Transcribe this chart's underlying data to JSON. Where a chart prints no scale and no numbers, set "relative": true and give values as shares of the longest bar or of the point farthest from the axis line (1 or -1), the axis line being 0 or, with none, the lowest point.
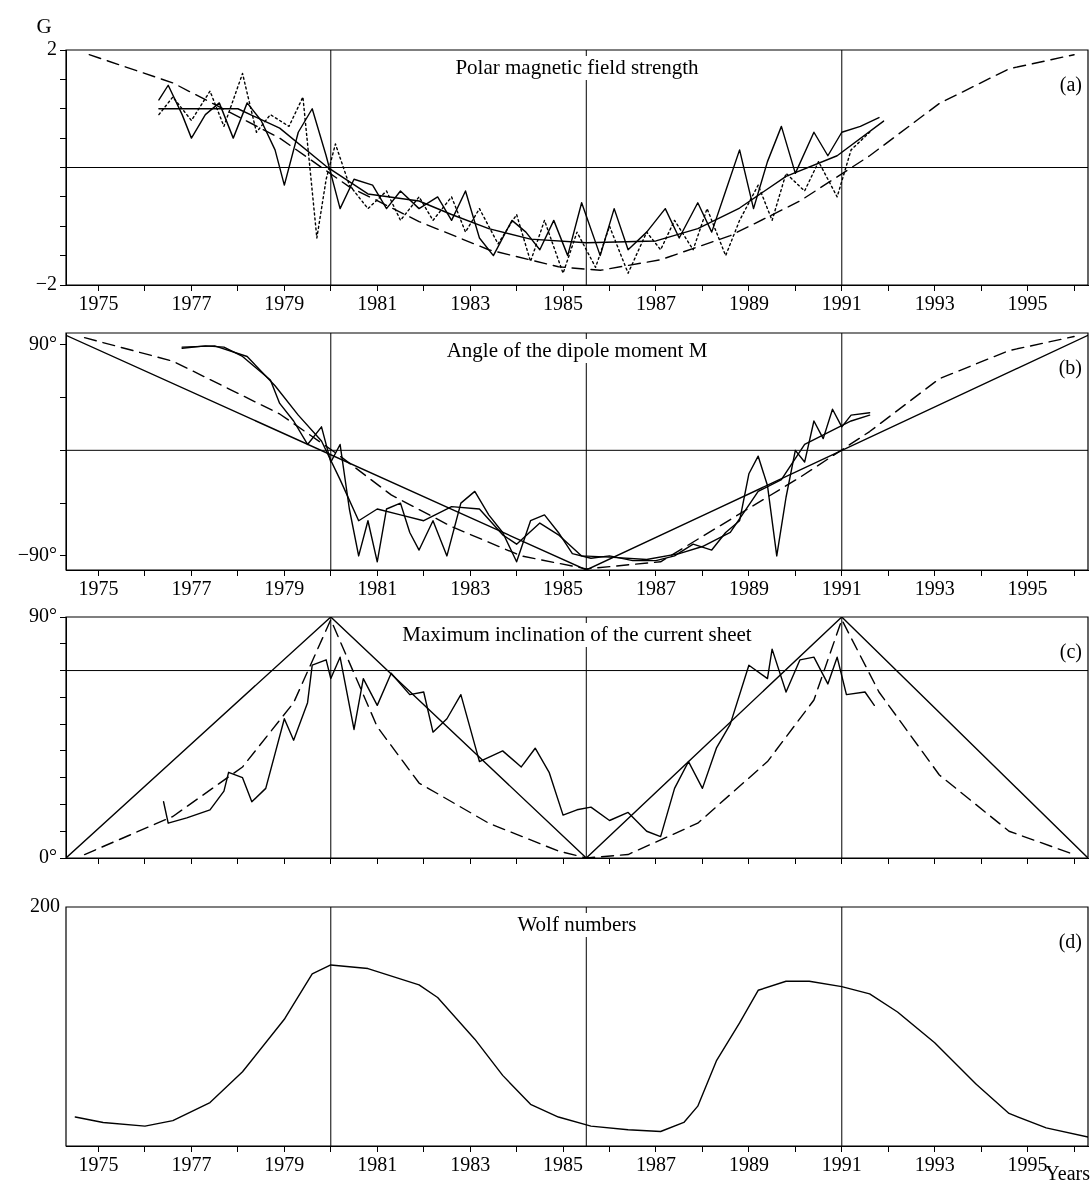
{
  "chart_data": [
    {
      "type": "line",
      "title": "Polar magnetic field strength",
      "ylabel": "G",
      "annotations": [
        "(a)"
      ],
      "xlim": [
        1974.3,
        1996.3
      ],
      "xticks": [
        1975,
        {
          "value": 1976,
          "label": null
        },
        1977,
        {
          "value": 1978,
          "label": null
        },
        1979,
        {
          "value": 1980,
          "label": null
        },
        1981,
        {
          "value": 1982,
          "label": null
        },
        1983,
        {
          "value": 1984,
          "label": null
        },
        1985,
        {
          "value": 1986,
          "label": null
        },
        1987,
        {
          "value": 1988,
          "label": null
        },
        1989,
        {
          "value": 1990,
          "label": null
        },
        1991,
        {
          "value": 1992,
          "label": null
        },
        1993,
        {
          "value": 1994,
          "label": null
        },
        1995,
        {
          "value": 1996,
          "label": null
        }
      ],
      "ylim": [
        -2,
        2
      ],
      "yticks": [
        {
          "value": -2,
          "label": "−2"
        },
        {
          "value": -1.5,
          "label": null
        },
        {
          "value": -1,
          "label": null
        },
        {
          "value": -0.5,
          "label": null
        },
        {
          "value": 0,
          "label": null
        },
        {
          "value": 0.5,
          "label": null
        },
        {
          "value": 1,
          "label": null
        },
        {
          "value": 1.5,
          "label": null
        },
        2
      ],
      "ref_lines": [
        {
          "axis": "x",
          "value": 1980
        },
        {
          "axis": "x",
          "value": 1985.5
        },
        {
          "axis": "x",
          "value": 1991
        },
        {
          "axis": "y",
          "value": 0
        }
      ],
      "series": [
        {
          "color": "#000000",
          "line_style": "dashed",
          "x": [
            1974.8,
            1976.6,
            1978.9,
            1980.4,
            1981.9,
            1983.4,
            1984.9,
            1985.8,
            1987.1,
            1988.6,
            1990.1,
            1991.6,
            1993.1,
            1994.6,
            1996.0
          ],
          "values": [
            1.92,
            1.44,
            0.5,
            -0.33,
            -0.92,
            -1.4,
            -1.69,
            -1.75,
            -1.57,
            -1.16,
            -0.57,
            0.2,
            1.09,
            1.68,
            1.92
          ]
        },
        {
          "color": "#000000",
          "line_style": "solid",
          "x": [
            1976.3,
            1976.5,
            1976.8,
            1977.0,
            1977.3,
            1977.6,
            1977.9,
            1978.2,
            1978.5,
            1978.8,
            1979.0,
            1979.3,
            1979.6,
            1979.9,
            1980.2,
            1980.5,
            1980.9,
            1981.2,
            1981.5,
            1981.9,
            1982.3,
            1982.6,
            1982.9,
            1983.2,
            1983.5,
            1983.9,
            1984.2,
            1984.5,
            1984.8,
            1985.1,
            1985.4,
            1985.8,
            1986.1,
            1986.4,
            1986.8,
            1987.2,
            1987.5,
            1987.9,
            1988.2,
            1988.5,
            1988.8,
            1989.1,
            1989.4,
            1989.7,
            1990.0,
            1990.4,
            1990.7,
            1991.0,
            1991.4,
            1991.8
          ],
          "values": [
            1.15,
            1.4,
            0.9,
            0.5,
            0.9,
            1.1,
            0.5,
            1.1,
            0.8,
            0.3,
            -0.3,
            0.6,
            1.0,
            0.2,
            -0.7,
            -0.2,
            -0.3,
            -0.7,
            -0.4,
            -0.7,
            -0.5,
            -0.9,
            -0.4,
            -1.2,
            -1.5,
            -0.9,
            -1.1,
            -1.4,
            -0.9,
            -1.5,
            -0.6,
            -1.5,
            -0.7,
            -1.4,
            -1.1,
            -0.7,
            -1.2,
            -0.6,
            -1.1,
            -0.4,
            0.3,
            -0.7,
            0.1,
            0.7,
            -0.1,
            0.6,
            0.2,
            0.6,
            0.7,
            0.85
          ]
        },
        {
          "color": "#000000",
          "line_style": "dotted",
          "x": [
            1976.3,
            1976.6,
            1977.0,
            1977.4,
            1977.7,
            1978.1,
            1978.4,
            1978.7,
            1979.1,
            1979.4,
            1979.7,
            1979.9,
            1980.1,
            1980.4,
            1980.8,
            1981.2,
            1981.5,
            1981.9,
            1982.2,
            1982.6,
            1982.9,
            1983.2,
            1983.6,
            1984.0,
            1984.3,
            1984.6,
            1985.0,
            1985.3,
            1985.7,
            1986.0,
            1986.4,
            1986.8,
            1987.1,
            1987.4,
            1987.8,
            1988.1,
            1988.5,
            1988.8,
            1989.2,
            1989.5,
            1989.8,
            1990.2,
            1990.5,
            1990.9,
            1991.2,
            1991.6
          ],
          "values": [
            0.9,
            1.2,
            0.8,
            1.3,
            0.7,
            1.6,
            0.6,
            0.9,
            0.7,
            1.2,
            -1.2,
            -0.2,
            0.4,
            -0.3,
            -0.7,
            -0.4,
            -0.9,
            -0.5,
            -0.9,
            -0.5,
            -1.1,
            -0.7,
            -1.3,
            -0.8,
            -1.6,
            -0.9,
            -1.8,
            -1.1,
            -1.7,
            -1.0,
            -1.8,
            -1.1,
            -1.4,
            -0.9,
            -1.4,
            -0.7,
            -1.5,
            -0.9,
            -0.3,
            -0.9,
            -0.1,
            -0.4,
            0.1,
            -0.5,
            0.3,
            0.6
          ]
        },
        {
          "color": "#000000",
          "line_style": "solid",
          "x": [
            1976.3,
            1978.0,
            1978.9,
            1979.9,
            1980.8,
            1981.9,
            1982.6,
            1983.4,
            1984.3,
            1985.5,
            1987.0,
            1987.9,
            1988.8,
            1989.8,
            1990.9,
            1991.9
          ],
          "values": [
            1.0,
            1.0,
            0.67,
            0.02,
            -0.45,
            -0.57,
            -0.8,
            -1.04,
            -1.22,
            -1.28,
            -1.25,
            -1.04,
            -0.69,
            -0.15,
            0.2,
            0.79
          ]
        }
      ]
    },
    {
      "type": "line",
      "title": "Angle of the dipole moment M",
      "annotations": [
        "(b)"
      ],
      "xlim": [
        1974.3,
        1996.3
      ],
      "xticks": [
        1975,
        {
          "value": 1976,
          "label": null
        },
        1977,
        {
          "value": 1978,
          "label": null
        },
        1979,
        {
          "value": 1980,
          "label": null
        },
        1981,
        {
          "value": 1982,
          "label": null
        },
        1983,
        {
          "value": 1984,
          "label": null
        },
        1985,
        {
          "value": 1986,
          "label": null
        },
        1987,
        {
          "value": 1988,
          "label": null
        },
        1989,
        {
          "value": 1990,
          "label": null
        },
        1991,
        {
          "value": 1992,
          "label": null
        },
        1993,
        {
          "value": 1994,
          "label": null
        },
        1995,
        {
          "value": 1996,
          "label": null
        }
      ],
      "ylim": [
        -102,
        100
      ],
      "yticks": [
        {
          "value": -90,
          "label": "−90°"
        },
        {
          "value": -45,
          "label": null
        },
        {
          "value": 0,
          "label": null
        },
        {
          "value": 45,
          "label": null
        },
        {
          "value": 90,
          "label": "90°"
        }
      ],
      "ref_lines": [
        {
          "axis": "x",
          "value": 1980
        },
        {
          "axis": "x",
          "value": 1985.5
        },
        {
          "axis": "x",
          "value": 1991
        },
        {
          "axis": "y",
          "value": 0
        }
      ],
      "series": [
        {
          "color": "#000000",
          "line_style": "solid",
          "x": [
            1974.3,
            1985.5,
            1996.3
          ],
          "values": [
            98,
            -102,
            98
          ]
        },
        {
          "color": "#000000",
          "line_style": "dashed",
          "x": [
            1974.7,
            1976.6,
            1978.9,
            1980.1,
            1981.3,
            1982.6,
            1984.1,
            1985.5,
            1987.1,
            1988.6,
            1990.1,
            1991.6,
            1993.1,
            1994.6,
            1996.0
          ],
          "values": [
            96,
            76,
            31,
            -2,
            -38,
            -65,
            -90,
            -101,
            -95,
            -59,
            -23,
            16,
            61,
            85,
            97
          ]
        },
        {
          "color": "#000000",
          "line_style": "solid",
          "x": [
            1976.8,
            1977.3,
            1977.7,
            1978.1,
            1978.4,
            1978.7,
            1978.9,
            1979.2,
            1979.5,
            1979.8,
            1980.0,
            1980.2,
            1980.4,
            1980.6,
            1980.8,
            1981.0,
            1981.2,
            1981.5,
            1981.7,
            1981.9,
            1982.2,
            1982.5,
            1982.8,
            1983.1,
            1983.4,
            1983.7,
            1984.0,
            1984.3,
            1984.6,
            1984.9,
            1985.2,
            1985.6,
            1986.0,
            1986.5,
            1987.0,
            1987.4,
            1987.8,
            1988.2,
            1988.5,
            1988.8,
            1989.0,
            1989.2,
            1989.4,
            1989.6,
            1989.8,
            1990.0,
            1990.2,
            1990.4,
            1990.6,
            1990.8,
            1991.0,
            1991.2,
            1991.6
          ],
          "values": [
            87,
            89,
            88,
            80,
            70,
            60,
            40,
            25,
            5,
            20,
            -10,
            5,
            -50,
            -90,
            -60,
            -95,
            -50,
            -45,
            -70,
            -85,
            -60,
            -90,
            -45,
            -35,
            -55,
            -70,
            -95,
            -60,
            -55,
            -70,
            -88,
            -92,
            -90,
            -94,
            -94,
            -90,
            -80,
            -85,
            -70,
            -60,
            -20,
            -5,
            -30,
            -90,
            -40,
            0,
            -10,
            25,
            10,
            35,
            20,
            30,
            32
          ]
        },
        {
          "color": "#000000",
          "line_style": "solid",
          "x": [
            1976.8,
            1977.5,
            1978.2,
            1978.8,
            1979.3,
            1979.8,
            1980.2,
            1980.6,
            1981.0,
            1981.5,
            1982.0,
            1982.6,
            1983.2,
            1983.7,
            1984.0,
            1984.5,
            1984.9,
            1985.4,
            1986.0,
            1986.8,
            1987.5,
            1988.0,
            1988.6,
            1989.2,
            1989.7,
            1990.2,
            1990.7,
            1991.2,
            1991.6
          ],
          "values": [
            88,
            89,
            80,
            55,
            30,
            8,
            -25,
            -60,
            -50,
            -55,
            -60,
            -48,
            -50,
            -72,
            -80,
            -62,
            -72,
            -90,
            -91,
            -93,
            -88,
            -82,
            -70,
            -35,
            -25,
            5,
            15,
            25,
            30
          ]
        }
      ]
    },
    {
      "type": "line",
      "title": "Maximum inclination of the current sheet",
      "annotations": [
        "(c)"
      ],
      "tick_labels": "y",
      "xlim": [
        1974.3,
        1996.3
      ],
      "xticks": [
        1975,
        {
          "value": 1976,
          "label": null
        },
        1977,
        {
          "value": 1978,
          "label": null
        },
        1979,
        {
          "value": 1980,
          "label": null
        },
        1981,
        {
          "value": 1982,
          "label": null
        },
        1983,
        {
          "value": 1984,
          "label": null
        },
        1985,
        {
          "value": 1986,
          "label": null
        },
        1987,
        {
          "value": 1988,
          "label": null
        },
        1989,
        {
          "value": 1990,
          "label": null
        },
        1991,
        {
          "value": 1992,
          "label": null
        },
        1993,
        {
          "value": 1994,
          "label": null
        },
        1995,
        {
          "value": 1996,
          "label": null
        }
      ],
      "ylim": [
        0,
        90
      ],
      "yticks": [
        {
          "value": 0,
          "label": "0°"
        },
        {
          "value": 10,
          "label": null
        },
        {
          "value": 20,
          "label": null
        },
        {
          "value": 30,
          "label": null
        },
        {
          "value": 40,
          "label": null
        },
        {
          "value": 50,
          "label": null
        },
        {
          "value": 60,
          "label": null
        },
        {
          "value": 70,
          "label": null
        },
        {
          "value": 80,
          "label": null
        },
        {
          "value": 90,
          "label": "90°"
        }
      ],
      "ref_lines": [
        {
          "axis": "x",
          "value": 1980
        },
        {
          "axis": "x",
          "value": 1985.5
        },
        {
          "axis": "x",
          "value": 1991
        },
        {
          "axis": "y",
          "value": 70
        }
      ],
      "series": [
        {
          "color": "#000000",
          "line_style": "solid",
          "x": [
            1974.3,
            1980,
            1985.5,
            1991,
            1996.3
          ],
          "values": [
            0,
            90,
            0,
            90,
            0
          ]
        },
        {
          "color": "#000000",
          "line_style": "dashed",
          "x": [
            1974.7,
            1976.6,
            1978.1,
            1979.2,
            1980.0,
            1981.0,
            1981.9,
            1983.4,
            1984.9,
            1985.5,
            1986.4,
            1987.9,
            1989.4,
            1990.4,
            1991.0,
            1991.8,
            1993.1,
            1994.6,
            1996.0
          ],
          "values": [
            1.3,
            15.5,
            34,
            58,
            89,
            49,
            28,
            13,
            2.6,
            0,
            1.3,
            13,
            36,
            59,
            89,
            62,
            31,
            10,
            1.3
          ]
        },
        {
          "color": "#000000",
          "line_style": "solid",
          "x": [
            1976.4,
            1976.5,
            1976.9,
            1977.4,
            1977.7,
            1977.8,
            1978.1,
            1978.3,
            1978.6,
            1978.8,
            1979.0,
            1979.2,
            1979.5,
            1979.6,
            1979.9,
            1980.0,
            1980.2,
            1980.5,
            1980.7,
            1981.0,
            1981.3,
            1981.7,
            1982.0,
            1982.2,
            1982.5,
            1982.8,
            1983.2,
            1983.7,
            1984.1,
            1984.4,
            1984.7,
            1985.0,
            1985.3,
            1985.6,
            1986.0,
            1986.4,
            1986.8,
            1987.1,
            1987.4,
            1987.7,
            1988.0,
            1988.3,
            1988.6,
            1989.0,
            1989.4,
            1989.5,
            1989.8,
            1990.1,
            1990.4,
            1990.7,
            1990.9,
            1991.1,
            1991.5,
            1991.7
          ],
          "values": [
            21,
            13,
            15,
            18,
            25,
            32,
            30,
            21,
            26,
            39,
            52,
            44,
            58,
            72,
            74,
            67,
            75,
            48,
            67,
            57,
            69,
            61,
            62,
            47,
            52,
            61,
            36,
            40,
            34,
            41,
            32,
            16,
            18,
            19,
            14,
            17,
            10,
            8,
            26,
            36,
            26,
            41,
            50,
            72,
            67,
            78,
            62,
            74,
            75,
            65,
            75,
            61,
            62,
            57
          ]
        }
      ]
    },
    {
      "type": "line",
      "title": "Wolf numbers",
      "xlabel": "Years",
      "annotations": [
        "(d)",
        "200"
      ],
      "relative": true,
      "xlim": [
        1974.3,
        1996.3
      ],
      "xticks": [
        1975,
        {
          "value": 1976,
          "label": null
        },
        1977,
        {
          "value": 1978,
          "label": null
        },
        1979,
        {
          "value": 1980,
          "label": null
        },
        1981,
        {
          "value": 1982,
          "label": null
        },
        1983,
        {
          "value": 1984,
          "label": null
        },
        1985,
        {
          "value": 1986,
          "label": null
        },
        1987,
        {
          "value": 1988,
          "label": null
        },
        1989,
        {
          "value": 1990,
          "label": null
        },
        1991,
        {
          "value": 1992,
          "label": null
        },
        1993,
        {
          "value": 1994,
          "label": null
        },
        1995,
        {
          "value": 1996,
          "label": null
        }
      ],
      "ref_lines": [
        {
          "axis": "x",
          "value": 1980
        },
        {
          "axis": "x",
          "value": 1985.5
        },
        {
          "axis": "x",
          "value": 1991
        }
      ],
      "series": [
        {
          "color": "#000000",
          "line_style": "solid",
          "x": [
            1974.5,
            1975.1,
            1976.0,
            1976.6,
            1977.4,
            1978.1,
            1979.0,
            1979.6,
            1980.0,
            1980.8,
            1981.9,
            1982.3,
            1983.1,
            1983.7,
            1984.3,
            1984.9,
            1985.6,
            1986.4,
            1987.1,
            1987.6,
            1987.9,
            1988.3,
            1988.8,
            1989.2,
            1989.8,
            1990.3,
            1991.0,
            1991.6,
            1992.2,
            1993.0,
            1993.9,
            1994.6,
            1995.4,
            1996.3
          ],
          "values": [
            0.16,
            0.13,
            0.11,
            0.14,
            0.24,
            0.41,
            0.7,
            0.95,
            1,
            0.98,
            0.89,
            0.82,
            0.59,
            0.39,
            0.23,
            0.16,
            0.11,
            0.09,
            0.08,
            0.13,
            0.22,
            0.47,
            0.68,
            0.86,
            0.91,
            0.91,
            0.88,
            0.84,
            0.74,
            0.57,
            0.34,
            0.18,
            0.1,
            0.05
          ]
        }
      ]
    }
  ]
}
